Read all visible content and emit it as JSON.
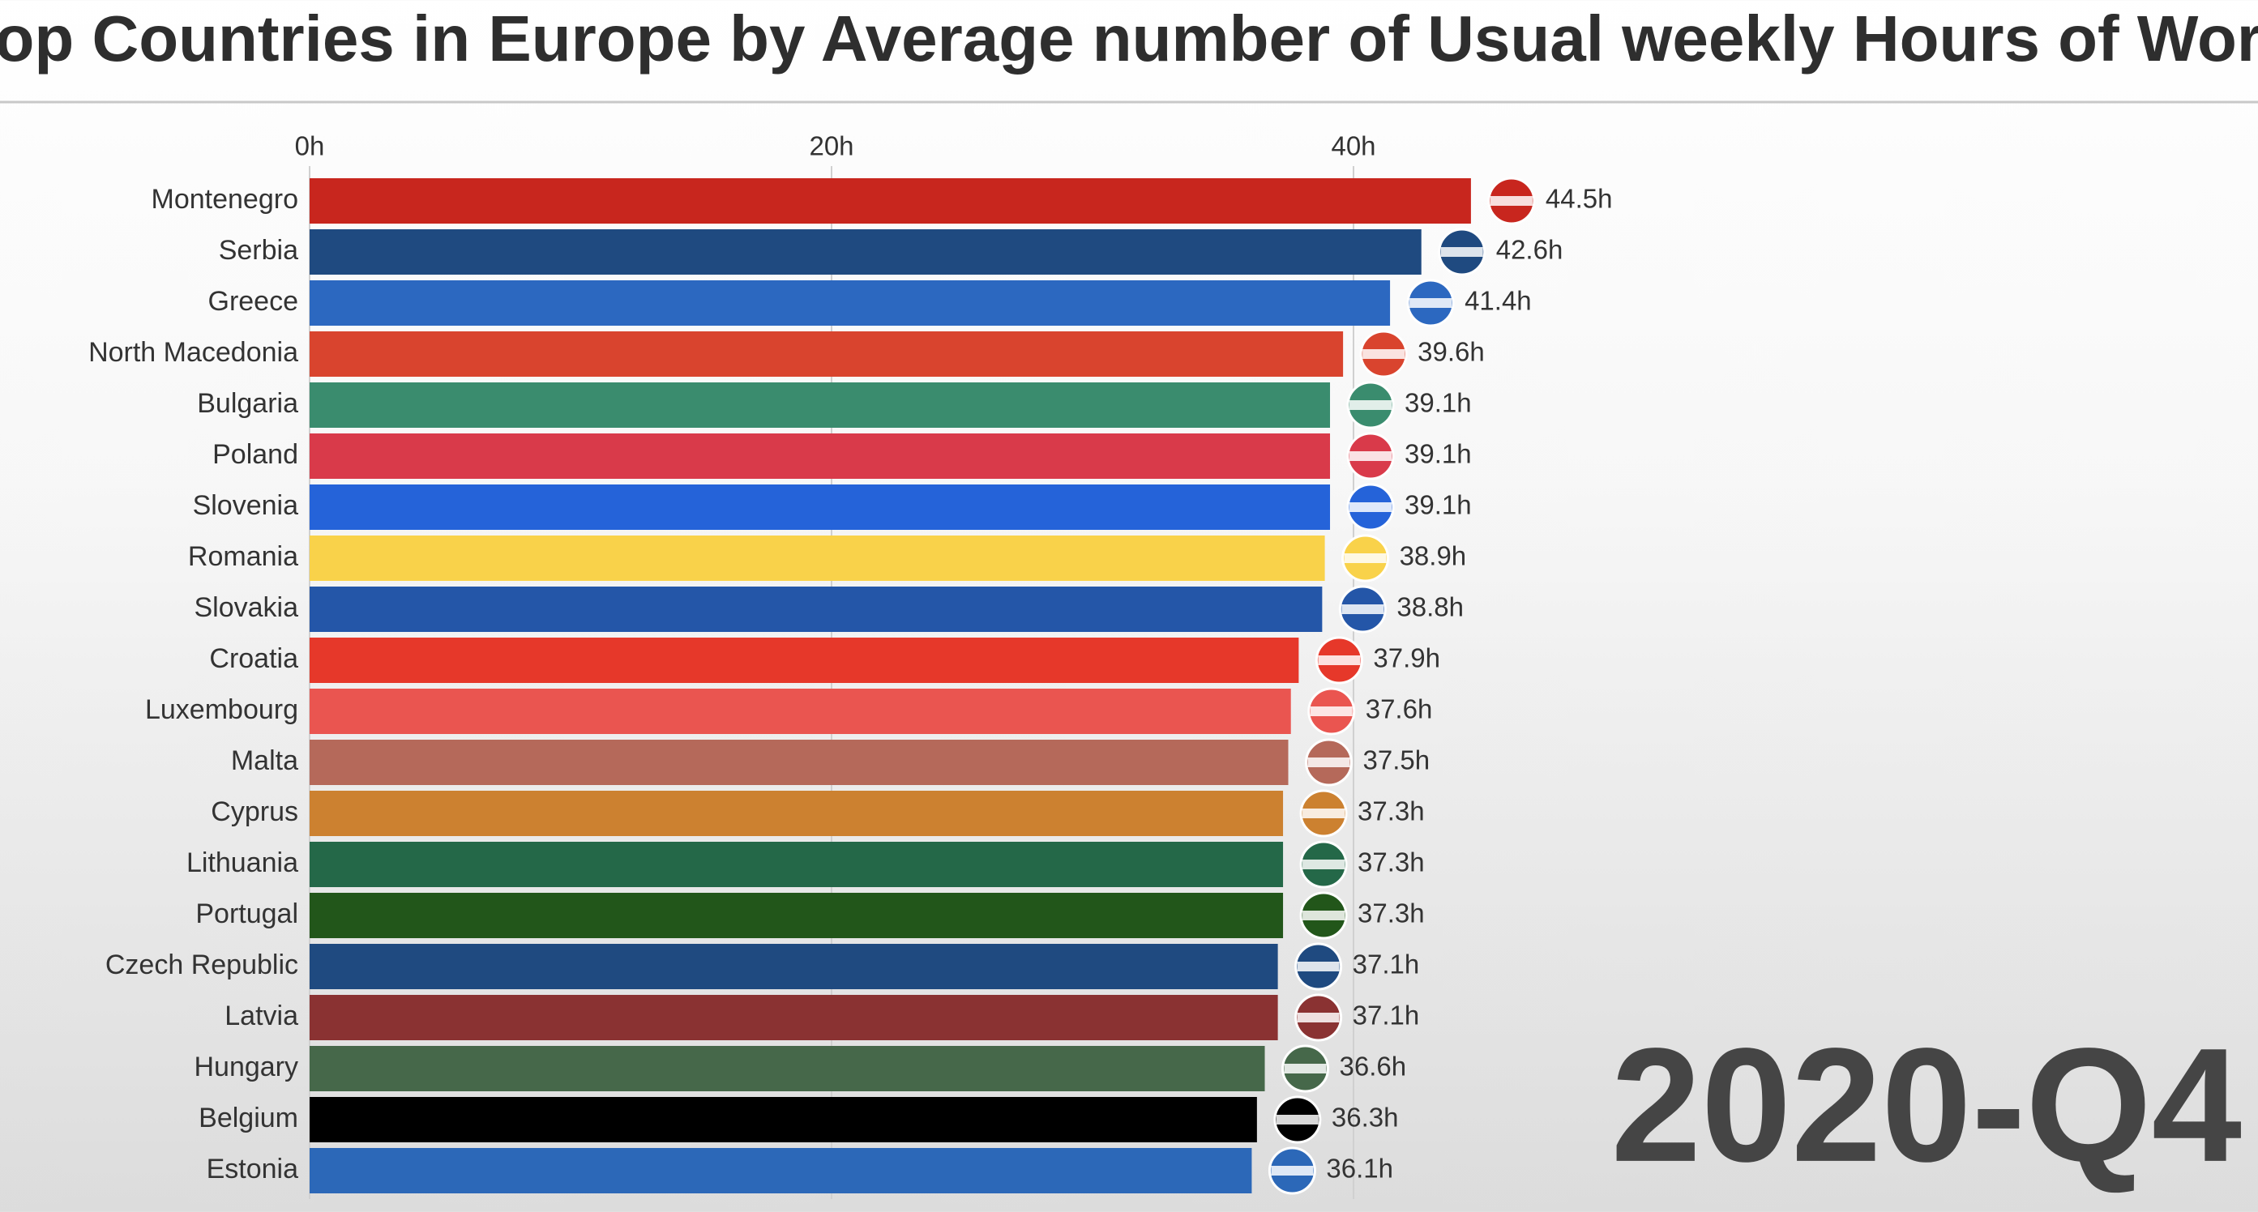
{
  "chart_data": {
    "type": "bar",
    "orientation": "horizontal",
    "title": "Top Countries in Europe by Average number of Usual weekly Hours of Work",
    "period": "2020-Q4",
    "categories": [
      "Montenegro",
      "Serbia",
      "Greece",
      "North Macedonia",
      "Bulgaria",
      "Poland",
      "Slovenia",
      "Romania",
      "Slovakia",
      "Croatia",
      "Luxembourg",
      "Malta",
      "Cyprus",
      "Lithuania",
      "Portugal",
      "Czech Republic",
      "Latvia",
      "Hungary",
      "Belgium",
      "Estonia"
    ],
    "values": [
      44.5,
      42.6,
      41.4,
      39.6,
      39.1,
      39.1,
      39.1,
      38.9,
      38.8,
      37.9,
      37.6,
      37.5,
      37.3,
      37.3,
      37.3,
      37.1,
      37.1,
      36.6,
      36.3,
      36.1
    ],
    "value_labels": [
      "44.5h",
      "42.6h",
      "41.4h",
      "39.6h",
      "39.1h",
      "39.1h",
      "39.1h",
      "38.9h",
      "38.8h",
      "37.9h",
      "37.6h",
      "37.5h",
      "37.3h",
      "37.3h",
      "37.3h",
      "37.1h",
      "37.1h",
      "36.6h",
      "36.3h",
      "36.1h"
    ],
    "colors": [
      "#c8261e",
      "#1f4a80",
      "#2c68c0",
      "#d9442e",
      "#3a8c6e",
      "#d93a4a",
      "#2563d9",
      "#f9d24a",
      "#2456a8",
      "#e6382a",
      "#ea5550",
      "#b5695a",
      "#cc8130",
      "#246848",
      "#22561a",
      "#1f4a80",
      "#8a3232",
      "#46684a",
      "#000000",
      "#2c68b8"
    ],
    "xlim": [
      0,
      50
    ],
    "xticks": [
      {
        "value": 0,
        "label": "0h"
      },
      {
        "value": 20,
        "label": "20h"
      },
      {
        "value": 40,
        "label": "40h"
      }
    ],
    "grid": true
  }
}
